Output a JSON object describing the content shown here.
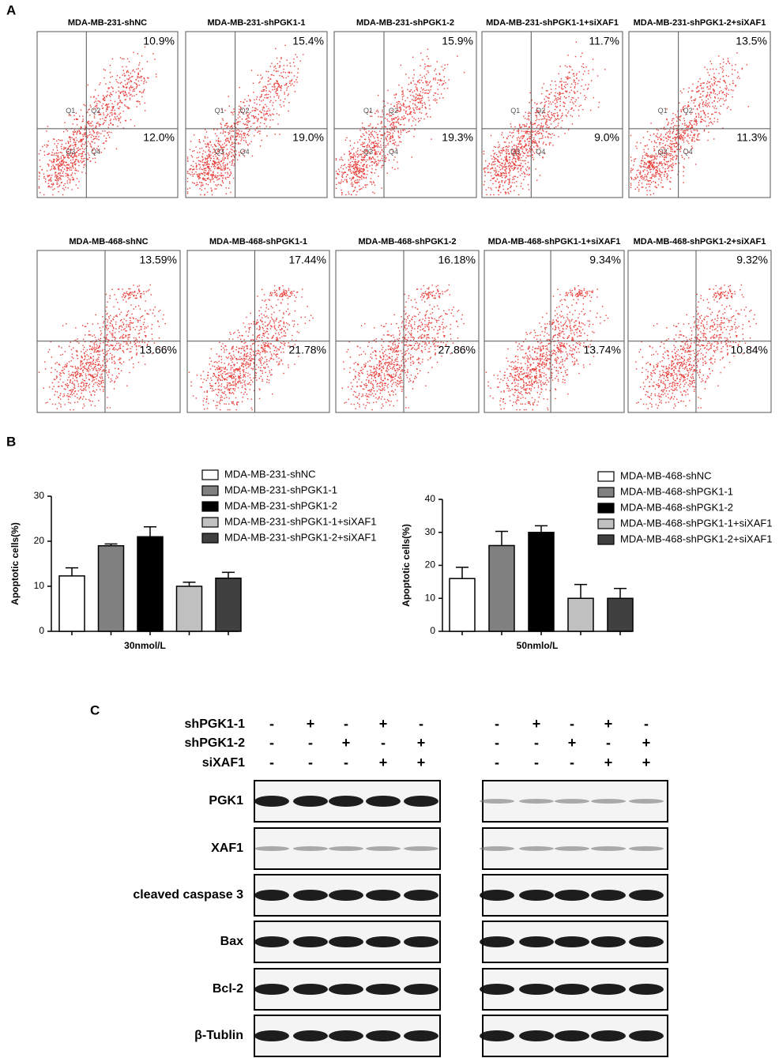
{
  "panel_a": {
    "label": "A",
    "quadrant_labels": [
      "Q1",
      "Q2",
      "Q3",
      "Q4"
    ],
    "rows": [
      {
        "plots": [
          {
            "title": "MDA-MB-231-shNC",
            "upper_right": "10.9%",
            "lower_right": "12.0%"
          },
          {
            "title": "MDA-MB-231-shPGK1-1",
            "upper_right": "15.4%",
            "lower_right": "19.0%"
          },
          {
            "title": "MDA-MB-231-shPGK1-2",
            "upper_right": "15.9%",
            "lower_right": "19.3%"
          },
          {
            "title": "MDA-MB-231-shPGK1-1+siXAF1",
            "upper_right": "11.7%",
            "lower_right": "9.0%"
          },
          {
            "title": "MDA-MB-231-shPGK1-2+siXAF1",
            "upper_right": "13.5%",
            "lower_right": "11.3%"
          }
        ]
      },
      {
        "plots": [
          {
            "title": "MDA-MB-468-shNC",
            "upper_right": "13.59%",
            "lower_right": "13.66%"
          },
          {
            "title": "MDA-MB-468-shPGK1-1",
            "upper_right": "17.44%",
            "lower_right": "21.78%"
          },
          {
            "title": "MDA-MB-468-shPGK1-2",
            "upper_right": "16.18%",
            "lower_right": "27.86%"
          },
          {
            "title": "MDA-MB-468-shPGK1-1+siXAF1",
            "upper_right": "9.34%",
            "lower_right": "13.74%"
          },
          {
            "title": "MDA-MB-468-shPGK1-2+siXAF1",
            "upper_right": "9.32%",
            "lower_right": "10.84%"
          }
        ]
      }
    ]
  },
  "panel_b": {
    "label": "B"
  },
  "chart_data": [
    {
      "type": "bar",
      "ylabel": "Apoptotic cells(%)",
      "categories": [
        "30nmol/L"
      ],
      "ylim": [
        0,
        30
      ],
      "yticks": [
        0,
        10,
        20,
        30
      ],
      "series": [
        {
          "name": "MDA-MB-231-shNC",
          "color": "#ffffff",
          "values": [
            12.3
          ],
          "errors": [
            1.8
          ]
        },
        {
          "name": "MDA-MB-231-shPGK1-1",
          "color": "#808080",
          "values": [
            19
          ],
          "errors": [
            0.4
          ]
        },
        {
          "name": "MDA-MB-231-shPGK1-2",
          "color": "#000000",
          "values": [
            21
          ],
          "errors": [
            2.2
          ]
        },
        {
          "name": "MDA-MB-231-shPGK1-1+siXAF1",
          "color": "#c0c0c0",
          "values": [
            10
          ],
          "errors": [
            0.9
          ]
        },
        {
          "name": "MDA-MB-231-shPGK1-2+siXAF1",
          "color": "#404040",
          "values": [
            11.8
          ],
          "errors": [
            1.3
          ]
        }
      ]
    },
    {
      "type": "bar",
      "ylabel": "Apoptotic cells(%)",
      "categories": [
        "50nmlo/L"
      ],
      "ylim": [
        0,
        40
      ],
      "yticks": [
        0,
        10,
        20,
        30,
        40
      ],
      "series": [
        {
          "name": "MDA-MB-468-shNC",
          "color": "#ffffff",
          "values": [
            16
          ],
          "errors": [
            3.4
          ]
        },
        {
          "name": "MDA-MB-468-shPGK1-1",
          "color": "#808080",
          "values": [
            26
          ],
          "errors": [
            4.3
          ]
        },
        {
          "name": "MDA-MB-468-shPGK1-2",
          "color": "#000000",
          "values": [
            30
          ],
          "errors": [
            2
          ]
        },
        {
          "name": "MDA-MB-468-shPGK1-1+siXAF1",
          "color": "#c0c0c0",
          "values": [
            10
          ],
          "errors": [
            4.2
          ]
        },
        {
          "name": "MDA-MB-468-shPGK1-2+siXAF1",
          "color": "#404040",
          "values": [
            10
          ],
          "errors": [
            3
          ]
        }
      ]
    }
  ],
  "panel_c": {
    "label": "C",
    "conditions": [
      {
        "label": "shPGK1-1",
        "left": [
          "-",
          "+",
          "-",
          "+",
          "-"
        ],
        "right": [
          "-",
          "+",
          "-",
          "+",
          "-"
        ]
      },
      {
        "label": "shPGK1-2",
        "left": [
          "-",
          "-",
          "+",
          "-",
          "+"
        ],
        "right": [
          "-",
          "-",
          "+",
          "-",
          "+"
        ]
      },
      {
        "label": "siXAF1",
        "left": [
          "-",
          "-",
          "-",
          "+",
          "+"
        ],
        "right": [
          "-",
          "-",
          "-",
          "+",
          "+"
        ]
      }
    ],
    "proteins": [
      "PGK1",
      "XAF1",
      "cleaved caspase 3",
      "Bax",
      "Bcl-2",
      "β-Tublin"
    ]
  }
}
